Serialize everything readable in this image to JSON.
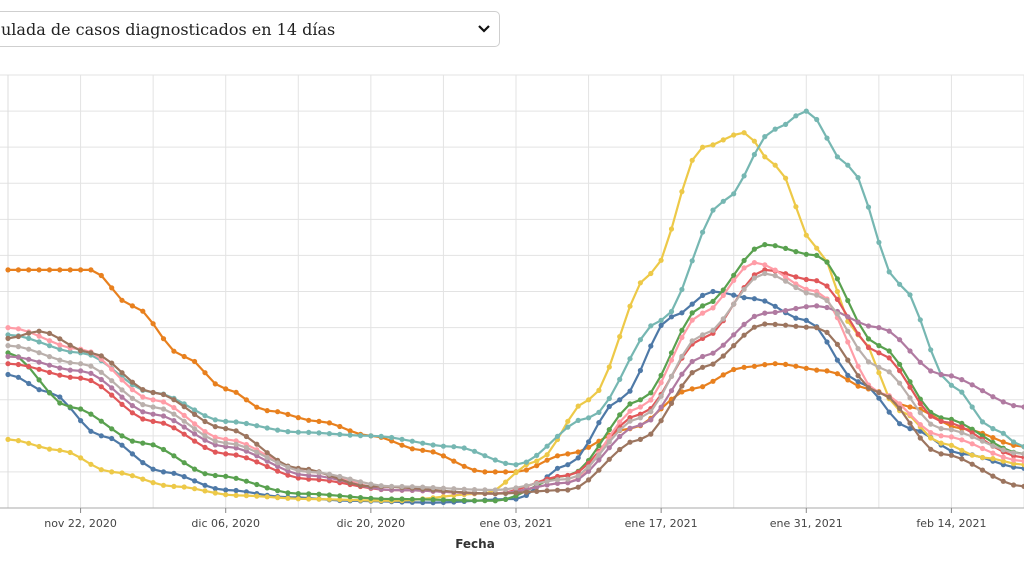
{
  "selector": {
    "selected_label": "ulada de casos diagnosticados en 14 días",
    "icon": "chevron-down-icon"
  },
  "chart_data": {
    "type": "line",
    "xlabel": "Fecha",
    "x_tick_labels": [
      "nov 22, 2020",
      "dic 06, 2020",
      "dic 20, 2020",
      "ene 03, 2021",
      "ene 17, 2021",
      "ene 31, 2021",
      "feb 14, 2021"
    ],
    "x_tick_dates": [
      "2020-11-22",
      "2020-12-06",
      "2020-12-20",
      "2021-01-03",
      "2021-01-17",
      "2021-01-31",
      "2021-02-14"
    ],
    "xlim": [
      "2020-11-15",
      "2021-02-21"
    ],
    "ylim": [
      0,
      1200
    ],
    "grid": true,
    "series": [
      {
        "color": "#e8801e",
        "x": [
          "2020-11-15",
          "2020-11-20",
          "2020-11-23",
          "2020-11-27",
          "2020-12-02",
          "2020-12-06",
          "2020-12-10",
          "2020-12-15",
          "2020-12-20",
          "2020-12-25",
          "2020-12-31",
          "2021-01-03",
          "2021-01-08",
          "2021-01-14",
          "2021-01-20",
          "2021-01-25",
          "2021-01-28",
          "2021-02-02",
          "2021-02-06",
          "2021-02-10",
          "2021-02-15",
          "2021-02-21"
        ],
        "y": [
          660,
          660,
          660,
          560,
          420,
          330,
          270,
          240,
          200,
          160,
          100,
          100,
          150,
          220,
          330,
          390,
          400,
          380,
          330,
          280,
          220,
          170
        ]
      },
      {
        "color": "#4e79a7",
        "x": [
          "2020-11-15",
          "2020-11-19",
          "2020-11-24",
          "2020-11-30",
          "2020-12-06",
          "2020-12-12",
          "2020-12-18",
          "2020-12-26",
          "2021-01-03",
          "2021-01-08",
          "2021-01-13",
          "2021-01-18",
          "2021-01-22",
          "2021-01-26",
          "2021-01-31",
          "2021-02-05",
          "2021-02-10",
          "2021-02-15",
          "2021-02-21"
        ],
        "y": [
          370,
          320,
          200,
          100,
          50,
          30,
          20,
          15,
          25,
          120,
          300,
          530,
          600,
          580,
          520,
          350,
          220,
          150,
          110
        ]
      },
      {
        "color": "#edc948",
        "x": [
          "2020-11-15",
          "2020-11-20",
          "2020-11-25",
          "2020-12-01",
          "2020-12-07",
          "2020-12-14",
          "2020-12-22",
          "2020-12-31",
          "2021-01-05",
          "2021-01-10",
          "2021-01-16",
          "2021-01-21",
          "2021-01-25",
          "2021-01-28",
          "2021-02-01",
          "2021-02-05",
          "2021-02-09",
          "2021-02-13",
          "2021-02-17",
          "2021-02-21"
        ],
        "y": [
          190,
          160,
          100,
          60,
          35,
          25,
          20,
          40,
          130,
          300,
          650,
          1000,
          1040,
          950,
          720,
          480,
          270,
          180,
          140,
          120
        ]
      },
      {
        "color": "#76b7b2",
        "x": [
          "2020-11-15",
          "2020-11-22",
          "2020-11-29",
          "2020-12-06",
          "2020-12-13",
          "2020-12-20",
          "2020-12-28",
          "2021-01-03",
          "2021-01-10",
          "2021-01-17",
          "2021-01-23",
          "2021-01-28",
          "2021-01-31",
          "2021-02-04",
          "2021-02-09",
          "2021-02-14",
          "2021-02-18",
          "2021-02-21"
        ],
        "y": [
          480,
          430,
          320,
          240,
          210,
          200,
          170,
          120,
          250,
          520,
          850,
          1050,
          1100,
          950,
          620,
          340,
          220,
          170
        ]
      },
      {
        "color": "#59a14f",
        "x": [
          "2020-11-15",
          "2020-11-21",
          "2020-11-28",
          "2020-12-05",
          "2020-12-13",
          "2020-12-22",
          "2021-01-01",
          "2021-01-08",
          "2021-01-15",
          "2021-01-21",
          "2021-01-27",
          "2021-02-01",
          "2021-02-07",
          "2021-02-13",
          "2021-02-21"
        ],
        "y": [
          430,
          280,
          180,
          90,
          40,
          25,
          20,
          90,
          300,
          560,
          730,
          700,
          450,
          250,
          150
        ]
      },
      {
        "color": "#e15759",
        "x": [
          "2020-11-15",
          "2020-11-22",
          "2020-11-29",
          "2020-12-06",
          "2020-12-14",
          "2020-12-22",
          "2021-01-01",
          "2021-01-08",
          "2021-01-15",
          "2021-01-21",
          "2021-01-27",
          "2021-02-01",
          "2021-02-07",
          "2021-02-13",
          "2021-02-21"
        ],
        "y": [
          400,
          360,
          240,
          150,
          80,
          50,
          40,
          90,
          260,
          470,
          660,
          630,
          430,
          240,
          140
        ]
      },
      {
        "color": "#ff9da7",
        "x": [
          "2020-11-15",
          "2020-11-22",
          "2020-11-29",
          "2020-12-06",
          "2020-12-14",
          "2020-12-22",
          "2021-01-01",
          "2021-01-08",
          "2021-01-15",
          "2021-01-21",
          "2021-01-26",
          "2021-02-01",
          "2021-02-07",
          "2021-02-13",
          "2021-02-21"
        ],
        "y": [
          500,
          440,
          300,
          190,
          100,
          50,
          40,
          70,
          280,
          540,
          680,
          600,
          320,
          200,
          130
        ]
      },
      {
        "color": "#b07aa1",
        "x": [
          "2020-11-15",
          "2020-11-22",
          "2020-11-29",
          "2020-12-06",
          "2020-12-14",
          "2020-12-22",
          "2021-01-01",
          "2021-01-08",
          "2021-01-15",
          "2021-01-21",
          "2021-01-27",
          "2021-02-01",
          "2021-02-07",
          "2021-02-13",
          "2021-02-21"
        ],
        "y": [
          420,
          380,
          260,
          170,
          90,
          50,
          40,
          70,
          230,
          420,
          540,
          560,
          500,
          370,
          280
        ]
      },
      {
        "color": "#9c755f",
        "x": [
          "2020-11-15",
          "2020-11-18",
          "2020-11-23",
          "2020-11-29",
          "2020-12-06",
          "2020-12-13",
          "2020-12-20",
          "2021-01-01",
          "2021-01-08",
          "2021-01-15",
          "2021-01-21",
          "2021-01-27",
          "2021-02-01",
          "2021-02-07",
          "2021-02-13",
          "2021-02-21"
        ],
        "y": [
          470,
          490,
          430,
          320,
          220,
          110,
          60,
          40,
          50,
          190,
          390,
          510,
          500,
          320,
          150,
          60
        ]
      },
      {
        "color": "#bab0ac",
        "x": [
          "2020-11-15",
          "2020-11-22",
          "2020-11-29",
          "2020-12-06",
          "2020-12-14",
          "2020-12-22",
          "2021-01-01",
          "2021-01-08",
          "2021-01-15",
          "2021-01-21",
          "2021-01-27",
          "2021-02-01",
          "2021-02-07",
          "2021-02-13",
          "2021-02-21"
        ],
        "y": [
          450,
          400,
          280,
          180,
          100,
          60,
          50,
          80,
          250,
          480,
          650,
          590,
          390,
          220,
          150
        ]
      }
    ]
  }
}
